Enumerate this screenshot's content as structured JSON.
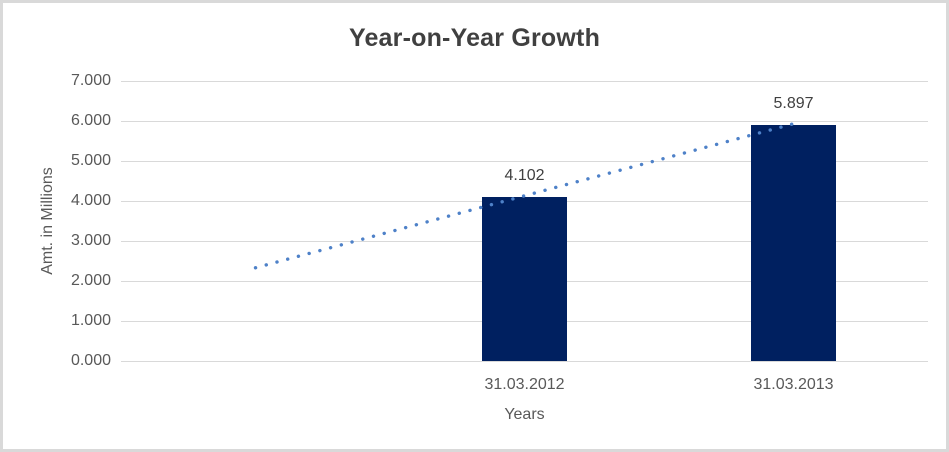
{
  "chart_data": {
    "type": "bar",
    "title": "Year-on-Year Growth",
    "categories": [
      "31.03.2012",
      "31.03.2013"
    ],
    "values": [
      4.102,
      5.897
    ],
    "data_labels": [
      "4.102",
      "5.897"
    ],
    "xlabel": "Years",
    "ylabel": "Amt. in Millions",
    "ylim": [
      0,
      7
    ],
    "ytick_step": 1,
    "ytick_labels": [
      "0.000",
      "1.000",
      "2.000",
      "3.000",
      "4.000",
      "5.000",
      "6.000",
      "7.000"
    ],
    "grid": true,
    "legend": "none",
    "trendline": {
      "style": "dotted",
      "start_value": 2.33,
      "end_value": 5.93
    },
    "colors": {
      "bar": "#002060",
      "trendline": "#4e81c8",
      "gridline": "#d9d9d9",
      "title_text": "#404040",
      "tick_text": "#595959",
      "axis_title_text": "#595959",
      "data_label_text": "#404040",
      "background": "#ffffff",
      "border": "#d9d9d9"
    }
  }
}
